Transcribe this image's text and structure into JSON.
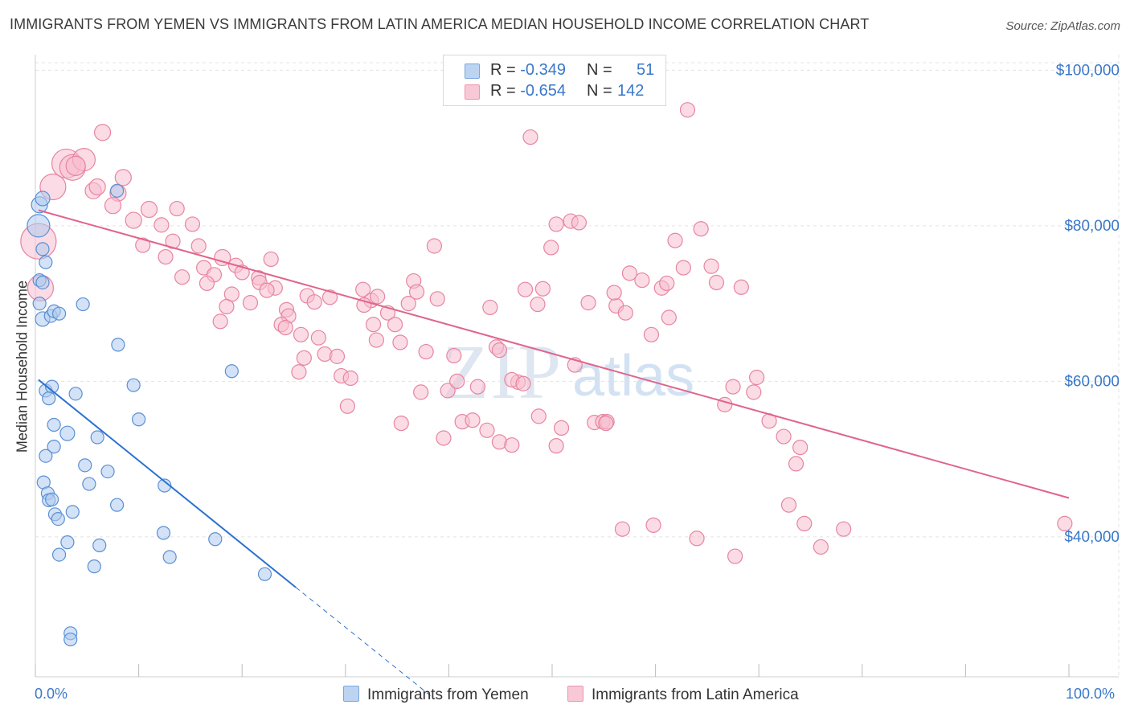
{
  "header": {
    "title": "IMMIGRANTS FROM YEMEN VS IMMIGRANTS FROM LATIN AMERICA MEDIAN HOUSEHOLD INCOME CORRELATION CHART",
    "source": "Source: ZipAtlas.com"
  },
  "legend": {
    "rows": [
      {
        "r_label": "R = ",
        "r_value": "-0.349",
        "n_label": "N = ",
        "n_value": "51"
      },
      {
        "r_label": "R = ",
        "r_value": "-0.654",
        "n_label": "N = ",
        "n_value": "142"
      }
    ]
  },
  "bottom_legend": {
    "yemen": "Immigrants from Yemen",
    "latin": "Immigrants from Latin America"
  },
  "axes": {
    "x_min_label": "0.0%",
    "x_max_label": "100.0%",
    "y_title": "Median Household Income"
  },
  "colors": {
    "yemen_fill": "#aecbee",
    "yemen_stroke": "#5a90d4",
    "yemen_line": "#2a72d0",
    "latin_fill": "#f7bdd0",
    "latin_stroke": "#e7859f",
    "latin_line": "#e0648d",
    "tick_label": "#3a78c9",
    "grid": "#e3e3e3",
    "watermark": "#d6e3f2"
  },
  "watermark": {
    "zip": "ZIP",
    "atlas": "atlas"
  },
  "chart_data": {
    "type": "scatter",
    "title": "IMMIGRANTS FROM YEMEN VS IMMIGRANTS FROM LATIN AMERICA MEDIAN HOUSEHOLD INCOME CORRELATION CHART",
    "xlabel": "",
    "ylabel": "Median Household Income",
    "xlim": [
      0,
      100
    ],
    "ylim": [
      22000,
      102000
    ],
    "y_ticks": [
      {
        "value": 40000,
        "label": "$40,000"
      },
      {
        "value": 60000,
        "label": "$60,000"
      },
      {
        "value": 80000,
        "label": "$80,000"
      },
      {
        "value": 100000,
        "label": "$100,000"
      }
    ],
    "x_ticks": [
      0,
      10,
      20,
      30,
      40,
      50,
      60,
      70,
      80,
      90,
      100
    ],
    "grid": true,
    "legend_position": "top-center",
    "series": [
      {
        "name": "Immigrants from Yemen",
        "R": -0.349,
        "N": 51,
        "trend": {
          "x0": 0.3,
          "y0": 60200,
          "x1": 25.2,
          "y1": 33500,
          "dash_to_x": 38.3,
          "dash_to_y": 19500
        },
        "points": [
          [
            0.4,
            82700,
            10
          ],
          [
            0.7,
            83500,
            9
          ],
          [
            0.3,
            80000,
            14
          ],
          [
            0.7,
            77000,
            8
          ],
          [
            1.0,
            75300,
            8
          ],
          [
            0.4,
            73000,
            8
          ],
          [
            0.7,
            72700,
            8
          ],
          [
            0.4,
            70000,
            8
          ],
          [
            0.7,
            68000,
            9
          ],
          [
            1.5,
            68400,
            8
          ],
          [
            1.8,
            69000,
            8
          ],
          [
            2.3,
            68700,
            8
          ],
          [
            4.6,
            69900,
            8
          ],
          [
            7.9,
            84500,
            8
          ],
          [
            8.0,
            64700,
            8
          ],
          [
            19.0,
            61300,
            8
          ],
          [
            1.0,
            58800,
            8
          ],
          [
            1.6,
            59300,
            8
          ],
          [
            1.3,
            57800,
            8
          ],
          [
            3.9,
            58400,
            8
          ],
          [
            9.5,
            59500,
            8
          ],
          [
            10.0,
            55100,
            8
          ],
          [
            1.8,
            54400,
            8
          ],
          [
            3.1,
            53300,
            9
          ],
          [
            6.0,
            52800,
            8
          ],
          [
            1.8,
            51600,
            8
          ],
          [
            1.0,
            50400,
            8
          ],
          [
            4.8,
            49200,
            8
          ],
          [
            7.0,
            48400,
            8
          ],
          [
            0.8,
            47000,
            8
          ],
          [
            5.2,
            46800,
            8
          ],
          [
            12.5,
            46600,
            8
          ],
          [
            1.2,
            45600,
            8
          ],
          [
            1.3,
            44700,
            8
          ],
          [
            1.6,
            44800,
            8
          ],
          [
            7.9,
            44100,
            8
          ],
          [
            1.9,
            42900,
            8
          ],
          [
            3.6,
            43200,
            8
          ],
          [
            2.2,
            42300,
            8
          ],
          [
            12.4,
            40500,
            8
          ],
          [
            17.4,
            39700,
            8
          ],
          [
            3.1,
            39300,
            8
          ],
          [
            6.2,
            38900,
            8
          ],
          [
            2.3,
            37700,
            8
          ],
          [
            13.0,
            37400,
            8
          ],
          [
            5.7,
            36200,
            8
          ],
          [
            22.2,
            35200,
            8
          ],
          [
            3.4,
            27600,
            8
          ],
          [
            3.4,
            26800,
            8
          ]
        ]
      },
      {
        "name": "Immigrants from Latin America",
        "R": -0.654,
        "N": 142,
        "trend": {
          "x0": 0.3,
          "y0": 82000,
          "x1": 100,
          "y1": 45000
        },
        "points": [
          [
            0.3,
            78000,
            22
          ],
          [
            0.5,
            72000,
            16
          ],
          [
            1.7,
            85000,
            16
          ],
          [
            3.0,
            88000,
            18
          ],
          [
            3.6,
            87500,
            16
          ],
          [
            4.7,
            88500,
            14
          ],
          [
            3.9,
            87700,
            12
          ],
          [
            6.5,
            92000,
            10
          ],
          [
            5.6,
            84500,
            10
          ],
          [
            6.0,
            85000,
            10
          ],
          [
            8.5,
            86200,
            10
          ],
          [
            8.0,
            84200,
            10
          ],
          [
            7.5,
            82600,
            10
          ],
          [
            9.5,
            80700,
            10
          ],
          [
            11.0,
            82100,
            10
          ],
          [
            12.2,
            80100,
            9
          ],
          [
            13.7,
            82200,
            9
          ],
          [
            15.2,
            80200,
            9
          ],
          [
            10.4,
            77500,
            9
          ],
          [
            12.6,
            76000,
            9
          ],
          [
            13.3,
            78000,
            9
          ],
          [
            15.8,
            77400,
            9
          ],
          [
            18.1,
            75900,
            10
          ],
          [
            14.2,
            73400,
            9
          ],
          [
            16.3,
            74600,
            9
          ],
          [
            17.3,
            73700,
            9
          ],
          [
            16.6,
            72600,
            9
          ],
          [
            19.4,
            74900,
            9
          ],
          [
            20.0,
            74000,
            9
          ],
          [
            21.6,
            73300,
            9
          ],
          [
            22.8,
            75700,
            9
          ],
          [
            21.7,
            72700,
            9
          ],
          [
            23.2,
            72000,
            9
          ],
          [
            19.0,
            71200,
            9
          ],
          [
            22.4,
            71700,
            9
          ],
          [
            18.5,
            69600,
            9
          ],
          [
            20.8,
            70100,
            9
          ],
          [
            17.9,
            67700,
            9
          ],
          [
            24.3,
            69200,
            9
          ],
          [
            24.5,
            68400,
            9
          ],
          [
            23.8,
            67300,
            9
          ],
          [
            24.2,
            66900,
            9
          ],
          [
            26.3,
            71000,
            9
          ],
          [
            27.0,
            70200,
            9
          ],
          [
            28.5,
            70800,
            9
          ],
          [
            25.7,
            66000,
            9
          ],
          [
            27.4,
            65600,
            9
          ],
          [
            28.0,
            63500,
            9
          ],
          [
            29.2,
            63200,
            9
          ],
          [
            26.0,
            63000,
            9
          ],
          [
            25.5,
            61200,
            9
          ],
          [
            29.6,
            60700,
            9
          ],
          [
            30.5,
            60400,
            9
          ],
          [
            30.2,
            56800,
            9
          ],
          [
            31.7,
            71800,
            9
          ],
          [
            32.5,
            70400,
            9
          ],
          [
            31.8,
            69800,
            9
          ],
          [
            33.1,
            70900,
            9
          ],
          [
            34.1,
            68800,
            9
          ],
          [
            32.7,
            67300,
            9
          ],
          [
            34.8,
            67300,
            9
          ],
          [
            33.0,
            65300,
            9
          ],
          [
            35.3,
            65000,
            9
          ],
          [
            36.1,
            70000,
            9
          ],
          [
            36.6,
            72900,
            9
          ],
          [
            36.9,
            71500,
            9
          ],
          [
            37.8,
            63800,
            9
          ],
          [
            38.6,
            77400,
            9
          ],
          [
            38.9,
            70600,
            9
          ],
          [
            37.3,
            58600,
            9
          ],
          [
            35.4,
            54600,
            9
          ],
          [
            39.5,
            52700,
            9
          ],
          [
            39.9,
            58800,
            9
          ],
          [
            40.5,
            63300,
            9
          ],
          [
            40.8,
            60000,
            9
          ],
          [
            41.3,
            54800,
            9
          ],
          [
            42.3,
            55000,
            9
          ],
          [
            42.8,
            59300,
            9
          ],
          [
            44.0,
            69500,
            9
          ],
          [
            43.7,
            53700,
            9
          ],
          [
            44.6,
            64400,
            9
          ],
          [
            44.9,
            64000,
            9
          ],
          [
            44.9,
            52200,
            9
          ],
          [
            46.1,
            51800,
            9
          ],
          [
            46.7,
            59900,
            9
          ],
          [
            46.1,
            60200,
            9
          ],
          [
            47.2,
            59700,
            9
          ],
          [
            47.4,
            71800,
            9
          ],
          [
            47.9,
            91400,
            9
          ],
          [
            48.6,
            69900,
            9
          ],
          [
            49.1,
            71900,
            9
          ],
          [
            48.7,
            55500,
            9
          ],
          [
            50.4,
            51700,
            9
          ],
          [
            49.9,
            77200,
            9
          ],
          [
            50.9,
            54000,
            9
          ],
          [
            50.4,
            80200,
            9
          ],
          [
            51.8,
            80600,
            9
          ],
          [
            52.6,
            80400,
            9
          ],
          [
            52.2,
            62100,
            9
          ],
          [
            53.5,
            70100,
            9
          ],
          [
            54.1,
            54700,
            9
          ],
          [
            54.9,
            54800,
            9
          ],
          [
            55.3,
            54800,
            9
          ],
          [
            55.2,
            54600,
            9
          ],
          [
            56.2,
            69700,
            9
          ],
          [
            56.0,
            71400,
            9
          ],
          [
            57.1,
            68800,
            9
          ],
          [
            56.8,
            41000,
            9
          ],
          [
            57.5,
            73900,
            9
          ],
          [
            58.7,
            73000,
            9
          ],
          [
            59.6,
            66000,
            9
          ],
          [
            59.8,
            41500,
            9
          ],
          [
            60.6,
            72000,
            9
          ],
          [
            61.1,
            72600,
            9
          ],
          [
            61.3,
            68200,
            9
          ],
          [
            61.9,
            78100,
            9
          ],
          [
            62.7,
            74600,
            9
          ],
          [
            63.1,
            94900,
            9
          ],
          [
            64.0,
            39800,
            9
          ],
          [
            64.4,
            79600,
            9
          ],
          [
            65.4,
            74800,
            9
          ],
          [
            65.9,
            72700,
            9
          ],
          [
            66.7,
            57000,
            9
          ],
          [
            67.5,
            59300,
            9
          ],
          [
            67.7,
            37500,
            9
          ],
          [
            68.3,
            72100,
            9
          ],
          [
            69.5,
            58600,
            9
          ],
          [
            69.8,
            60500,
            9
          ],
          [
            71.0,
            54900,
            9
          ],
          [
            72.4,
            52900,
            9
          ],
          [
            72.9,
            44100,
            9
          ],
          [
            73.6,
            49400,
            9
          ],
          [
            74.0,
            51500,
            9
          ],
          [
            74.4,
            41700,
            9
          ],
          [
            76.0,
            38700,
            9
          ],
          [
            78.2,
            41000,
            9
          ],
          [
            99.6,
            41700,
            9
          ]
        ]
      }
    ]
  }
}
